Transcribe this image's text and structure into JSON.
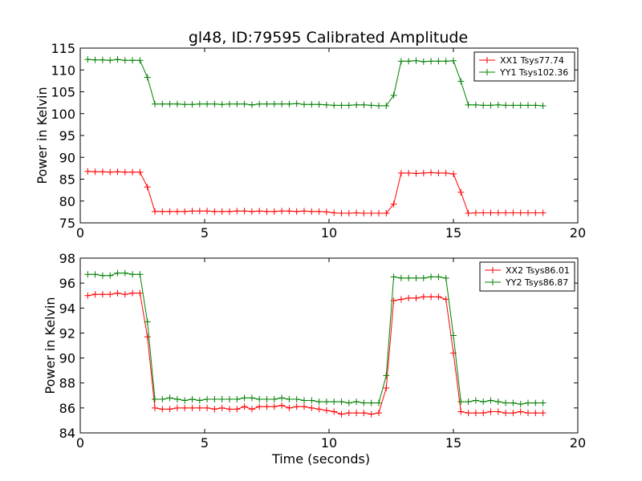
{
  "figure": {
    "title": "gl48, ID:79595 Calibrated Amplitude"
  },
  "chart_data": [
    {
      "type": "line",
      "title": "gl48, ID:79595 Calibrated Amplitude",
      "xlabel": "",
      "ylabel": "Power in Kelvin",
      "xlim": [
        0,
        20
      ],
      "ylim": [
        75,
        115
      ],
      "xticks": [
        "0",
        "5",
        "10",
        "15",
        "20"
      ],
      "yticks": [
        "75",
        "80",
        "85",
        "90",
        "95",
        "100",
        "105",
        "110",
        "115"
      ],
      "grid": false,
      "legend_position": "top-right",
      "marker": "+",
      "series": [
        {
          "name": "XX1 Tsys77.74",
          "color": "#ff0000",
          "x": [
            0.3,
            0.6,
            0.9,
            1.2,
            1.5,
            1.8,
            2.1,
            2.4,
            2.7,
            3.0,
            3.3,
            3.6,
            3.9,
            4.2,
            4.5,
            4.8,
            5.1,
            5.4,
            5.7,
            6.0,
            6.3,
            6.6,
            6.9,
            7.2,
            7.5,
            7.8,
            8.1,
            8.4,
            8.7,
            9.0,
            9.3,
            9.6,
            9.9,
            10.2,
            10.5,
            10.8,
            11.1,
            11.4,
            11.7,
            12.0,
            12.3,
            12.6,
            12.9,
            13.2,
            13.5,
            13.8,
            14.1,
            14.4,
            14.7,
            15.0,
            15.3,
            15.6,
            15.9,
            16.2,
            16.5,
            16.8,
            17.1,
            17.4,
            17.7,
            18.0,
            18.3,
            18.6
          ],
          "y": [
            86.8,
            86.7,
            86.7,
            86.6,
            86.7,
            86.6,
            86.6,
            86.6,
            83.2,
            77.6,
            77.6,
            77.6,
            77.6,
            77.6,
            77.7,
            77.7,
            77.7,
            77.6,
            77.6,
            77.6,
            77.7,
            77.7,
            77.6,
            77.7,
            77.6,
            77.6,
            77.7,
            77.7,
            77.6,
            77.7,
            77.6,
            77.6,
            77.5,
            77.3,
            77.2,
            77.2,
            77.3,
            77.2,
            77.2,
            77.2,
            77.2,
            79.3,
            86.4,
            86.4,
            86.3,
            86.4,
            86.5,
            86.4,
            86.4,
            86.2,
            82.0,
            77.2,
            77.3,
            77.3,
            77.3,
            77.3,
            77.3,
            77.3,
            77.3,
            77.3,
            77.3,
            77.3
          ]
        },
        {
          "name": "YY1 Tsys102.36",
          "color": "#008000",
          "x": [
            0.3,
            0.6,
            0.9,
            1.2,
            1.5,
            1.8,
            2.1,
            2.4,
            2.7,
            3.0,
            3.3,
            3.6,
            3.9,
            4.2,
            4.5,
            4.8,
            5.1,
            5.4,
            5.7,
            6.0,
            6.3,
            6.6,
            6.9,
            7.2,
            7.5,
            7.8,
            8.1,
            8.4,
            8.7,
            9.0,
            9.3,
            9.6,
            9.9,
            10.2,
            10.5,
            10.8,
            11.1,
            11.4,
            11.7,
            12.0,
            12.3,
            12.6,
            12.9,
            13.2,
            13.5,
            13.8,
            14.1,
            14.4,
            14.7,
            15.0,
            15.3,
            15.6,
            15.9,
            16.2,
            16.5,
            16.8,
            17.1,
            17.4,
            17.7,
            18.0,
            18.3,
            18.6
          ],
          "y": [
            112.4,
            112.3,
            112.3,
            112.2,
            112.4,
            112.2,
            112.2,
            112.2,
            108.3,
            102.2,
            102.2,
            102.2,
            102.2,
            102.1,
            102.1,
            102.2,
            102.2,
            102.2,
            102.1,
            102.2,
            102.2,
            102.2,
            102.0,
            102.2,
            102.2,
            102.2,
            102.2,
            102.2,
            102.3,
            102.1,
            102.1,
            102.1,
            102.0,
            101.9,
            101.9,
            101.9,
            102.0,
            102.0,
            101.9,
            101.8,
            101.8,
            104.2,
            112.0,
            112.0,
            112.1,
            111.9,
            112.0,
            112.0,
            112.0,
            112.1,
            107.4,
            102.0,
            102.0,
            101.9,
            101.9,
            102.0,
            101.9,
            101.9,
            101.9,
            101.9,
            101.9,
            101.8
          ]
        }
      ]
    },
    {
      "type": "line",
      "title": "",
      "xlabel": "Time (seconds)",
      "ylabel": "Power in Kelvin",
      "xlim": [
        0,
        20
      ],
      "ylim": [
        84,
        98
      ],
      "xticks": [
        "0",
        "5",
        "10",
        "15",
        "20"
      ],
      "yticks": [
        "84",
        "86",
        "88",
        "90",
        "92",
        "94",
        "96",
        "98"
      ],
      "grid": false,
      "legend_position": "top-right",
      "marker": "+",
      "series": [
        {
          "name": "XX2 Tsys86.01",
          "color": "#ff0000",
          "x": [
            0.3,
            0.6,
            0.9,
            1.2,
            1.5,
            1.8,
            2.1,
            2.4,
            2.7,
            3.0,
            3.3,
            3.6,
            3.9,
            4.2,
            4.5,
            4.8,
            5.1,
            5.4,
            5.7,
            6.0,
            6.3,
            6.6,
            6.9,
            7.2,
            7.5,
            7.8,
            8.1,
            8.4,
            8.7,
            9.0,
            9.3,
            9.6,
            9.9,
            10.2,
            10.5,
            10.8,
            11.1,
            11.4,
            11.7,
            12.0,
            12.3,
            12.6,
            12.9,
            13.2,
            13.5,
            13.8,
            14.1,
            14.4,
            14.7,
            15.0,
            15.3,
            15.6,
            15.9,
            16.2,
            16.5,
            16.8,
            17.1,
            17.4,
            17.7,
            18.0,
            18.3,
            18.6
          ],
          "y": [
            95.0,
            95.1,
            95.1,
            95.1,
            95.2,
            95.1,
            95.2,
            95.2,
            91.7,
            86.0,
            85.9,
            85.9,
            86.0,
            86.0,
            86.0,
            86.0,
            86.0,
            85.9,
            86.0,
            85.9,
            85.9,
            86.1,
            85.9,
            86.1,
            86.1,
            86.1,
            86.2,
            86.0,
            86.1,
            86.1,
            86.0,
            85.9,
            85.8,
            85.7,
            85.5,
            85.6,
            85.6,
            85.6,
            85.5,
            85.6,
            87.6,
            94.6,
            94.7,
            94.8,
            94.8,
            94.9,
            94.9,
            94.9,
            94.7,
            90.4,
            85.7,
            85.6,
            85.6,
            85.6,
            85.7,
            85.7,
            85.6,
            85.6,
            85.7,
            85.6,
            85.6,
            85.6
          ]
        },
        {
          "name": "YY2 Tsys86.87",
          "color": "#008000",
          "x": [
            0.3,
            0.6,
            0.9,
            1.2,
            1.5,
            1.8,
            2.1,
            2.4,
            2.7,
            3.0,
            3.3,
            3.6,
            3.9,
            4.2,
            4.5,
            4.8,
            5.1,
            5.4,
            5.7,
            6.0,
            6.3,
            6.6,
            6.9,
            7.2,
            7.5,
            7.8,
            8.1,
            8.4,
            8.7,
            9.0,
            9.3,
            9.6,
            9.9,
            10.2,
            10.5,
            10.8,
            11.1,
            11.4,
            11.7,
            12.0,
            12.3,
            12.6,
            12.9,
            13.2,
            13.5,
            13.8,
            14.1,
            14.4,
            14.7,
            15.0,
            15.3,
            15.6,
            15.9,
            16.2,
            16.5,
            16.8,
            17.1,
            17.4,
            17.7,
            18.0,
            18.3,
            18.6
          ],
          "y": [
            96.7,
            96.7,
            96.6,
            96.6,
            96.8,
            96.8,
            96.7,
            96.7,
            92.9,
            86.7,
            86.7,
            86.8,
            86.7,
            86.6,
            86.7,
            86.6,
            86.7,
            86.7,
            86.7,
            86.7,
            86.7,
            86.8,
            86.8,
            86.7,
            86.7,
            86.7,
            86.8,
            86.7,
            86.7,
            86.6,
            86.6,
            86.5,
            86.5,
            86.5,
            86.5,
            86.4,
            86.5,
            86.4,
            86.4,
            86.4,
            88.6,
            96.5,
            96.4,
            96.4,
            96.4,
            96.4,
            96.5,
            96.5,
            96.4,
            91.8,
            86.5,
            86.5,
            86.6,
            86.5,
            86.6,
            86.5,
            86.4,
            86.4,
            86.3,
            86.4,
            86.4,
            86.4
          ]
        }
      ]
    }
  ]
}
